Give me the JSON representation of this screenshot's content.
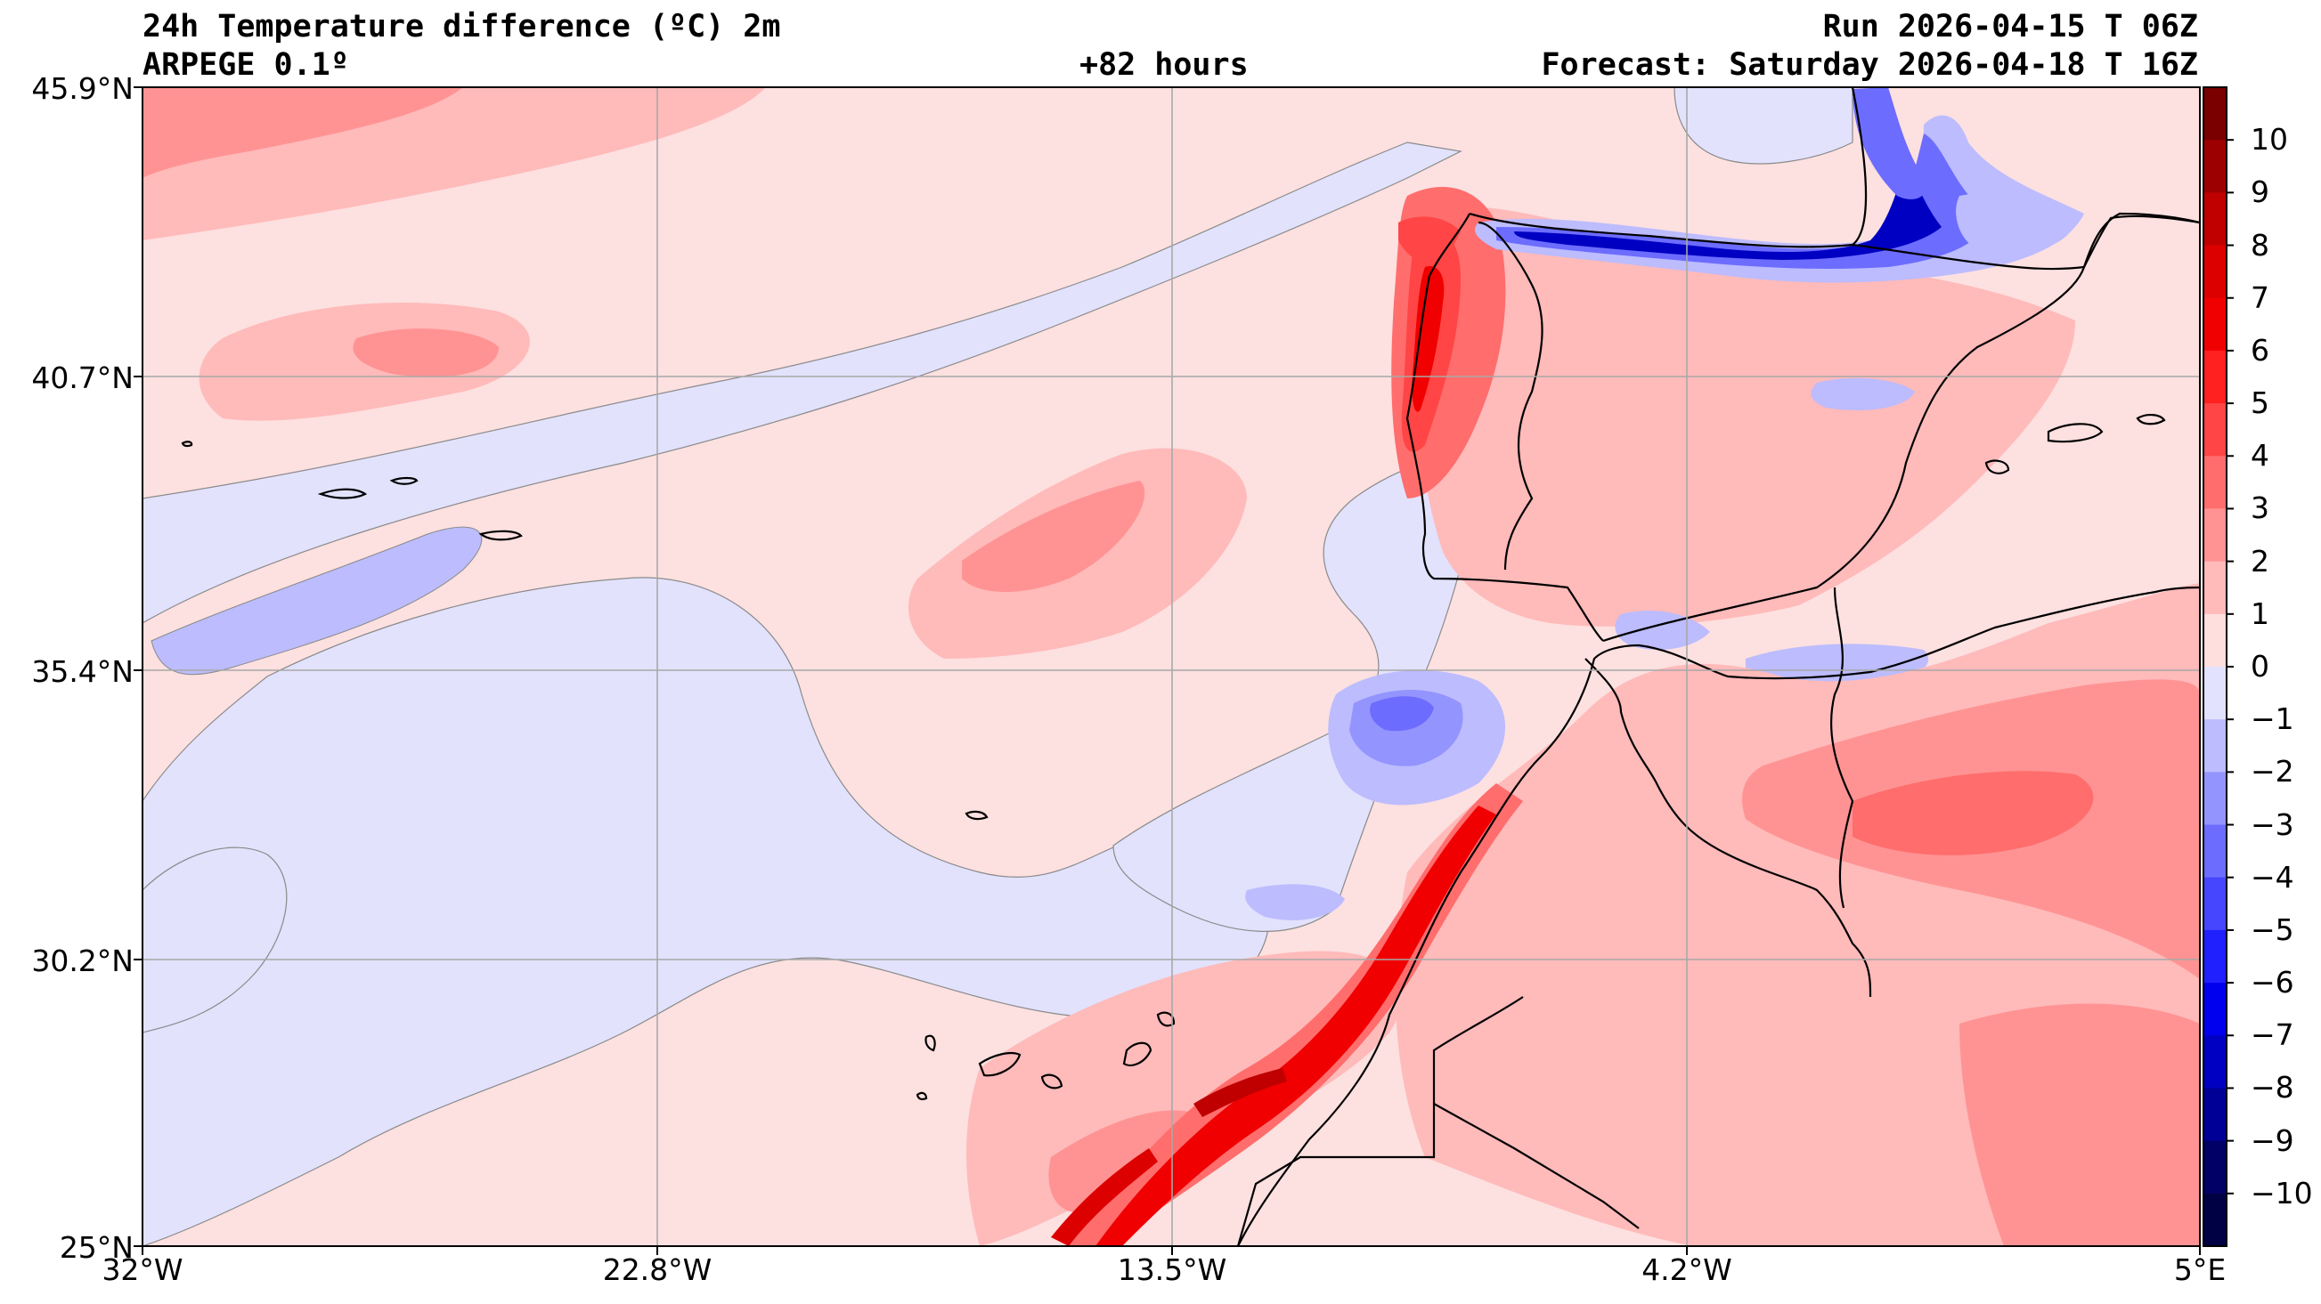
{
  "header": {
    "title": "24h Temperature difference (ºC) 2m",
    "model": "ARPEGE 0.1º",
    "lead": "+82 hours",
    "run": "Run 2026-04-15 T 06Z",
    "forecast": "Forecast: Saturday 2026-04-18 T 16Z"
  },
  "axes": {
    "lat_labels": [
      "45.9°N",
      "40.7°N",
      "35.4°N",
      "30.2°N",
      "25°N"
    ],
    "lon_labels": [
      "32°W",
      "22.8°W",
      "13.5°W",
      "4.2°W",
      "5°E"
    ],
    "lat_range": [
      25,
      45.9
    ],
    "lon_range": [
      -32,
      5
    ],
    "grid": true
  },
  "colorbar": {
    "labels": [
      "10",
      "9",
      "8",
      "7",
      "6",
      "5",
      "4",
      "3",
      "2",
      "1",
      "0",
      "−1",
      "−2",
      "−3",
      "−4",
      "−5",
      "−6",
      "−7",
      "−8",
      "−9",
      "−10"
    ],
    "colors_top_to_bottom": [
      "#7a0000",
      "#9c0000",
      "#c00000",
      "#dd0000",
      "#f00000",
      "#ff2020",
      "#ff4545",
      "#ff6d6d",
      "#ff9393",
      "#ffbaba",
      "#ffdede",
      "#e2e2fe",
      "#bcbcfe",
      "#9494fe",
      "#6c6cff",
      "#4646ff",
      "#2020ff",
      "#0000ee",
      "#0000c2",
      "#000096",
      "#000066",
      "#000044"
    ]
  },
  "colors": {
    "background_field": "#fde0e0",
    "near_zero_negative": "#e2e2fd",
    "coastline": "#000000",
    "gridline": "#a8a8a8"
  }
}
